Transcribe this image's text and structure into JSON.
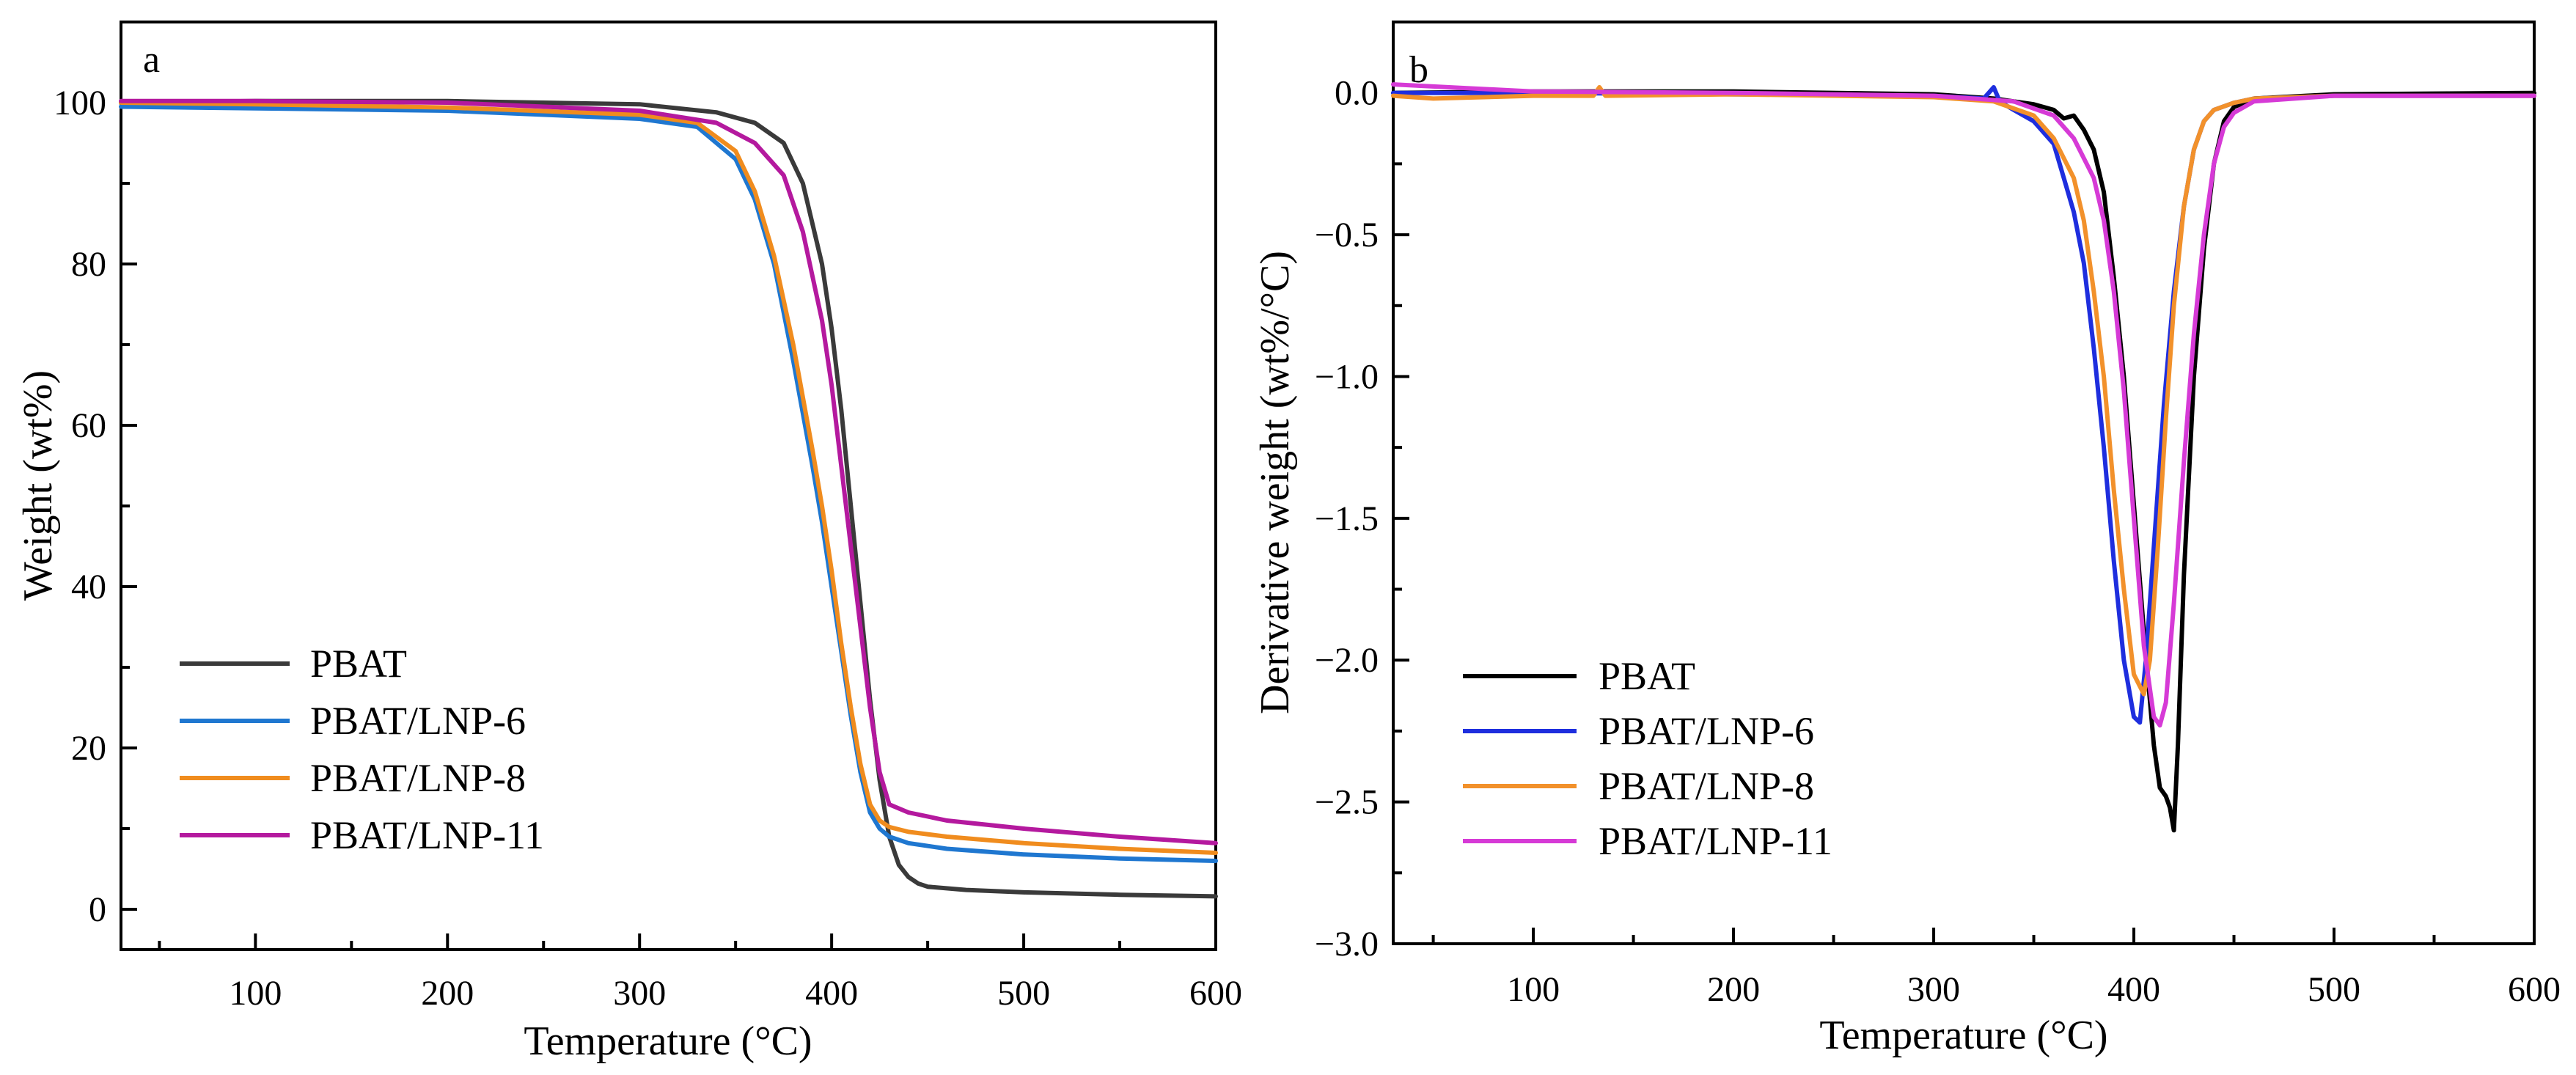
{
  "chart_data": [
    {
      "id": "a",
      "type": "line",
      "panel_label": "a",
      "xlabel": "Temperature (°C)",
      "ylabel": "Weight (wt%)",
      "xlim": [
        30,
        600
      ],
      "ylim": [
        -5,
        110
      ],
      "xticks": [
        100,
        200,
        300,
        400,
        500,
        600
      ],
      "xtick_labels": [
        "100",
        "200",
        "300",
        "400",
        "500",
        "600"
      ],
      "yticks": [
        0,
        20,
        40,
        60,
        80,
        100
      ],
      "ytick_labels": [
        "0",
        "20",
        "40",
        "60",
        "80",
        "100"
      ],
      "grid": false,
      "legend_position": "bottom-left",
      "series": [
        {
          "name": "PBAT",
          "color": "#3a3a3a",
          "x": [
            30,
            100,
            200,
            300,
            340,
            360,
            375,
            385,
            395,
            400,
            405,
            410,
            415,
            420,
            425,
            430,
            435,
            440,
            445,
            450,
            470,
            500,
            550,
            600
          ],
          "y": [
            100,
            100.2,
            100.2,
            99.8,
            98.8,
            97.5,
            95,
            90,
            80,
            72,
            62,
            50,
            38,
            26,
            16,
            9,
            5.5,
            4,
            3.2,
            2.8,
            2.4,
            2.1,
            1.8,
            1.6
          ]
        },
        {
          "name": "PBAT/LNP-6",
          "color": "#1f77d0",
          "x": [
            30,
            100,
            200,
            300,
            330,
            350,
            360,
            370,
            380,
            390,
            395,
            400,
            405,
            410,
            415,
            420,
            425,
            430,
            440,
            460,
            500,
            550,
            600
          ],
          "y": [
            99.5,
            99.3,
            99,
            98,
            97,
            93,
            88,
            80,
            68,
            55,
            48,
            40,
            32,
            24,
            17,
            12,
            10,
            9,
            8.2,
            7.5,
            6.8,
            6.3,
            6.0
          ]
        },
        {
          "name": "PBAT/LNP-8",
          "color": "#f08c1e",
          "x": [
            30,
            100,
            200,
            300,
            330,
            350,
            360,
            370,
            380,
            390,
            395,
            400,
            405,
            410,
            415,
            420,
            425,
            430,
            440,
            460,
            500,
            550,
            600
          ],
          "y": [
            100,
            99.8,
            99.4,
            98.5,
            97.5,
            94,
            89,
            81,
            70,
            57,
            50,
            42,
            33,
            25,
            18,
            13,
            11,
            10.2,
            9.6,
            9,
            8.2,
            7.5,
            7.0
          ]
        },
        {
          "name": "PBAT/LNP-11",
          "color": "#b4199e",
          "x": [
            30,
            100,
            200,
            300,
            340,
            360,
            375,
            385,
            395,
            400,
            405,
            410,
            415,
            420,
            425,
            430,
            440,
            460,
            500,
            550,
            600
          ],
          "y": [
            100.2,
            100.2,
            100,
            99,
            97.5,
            95,
            91,
            84,
            73,
            65,
            55,
            45,
            35,
            25,
            17,
            13,
            12,
            11,
            10,
            9,
            8.2
          ]
        }
      ]
    },
    {
      "id": "b",
      "type": "line",
      "panel_label": "b",
      "xlabel": "Temperature (°C)",
      "ylabel": "Derivative weight (wt%/°C)",
      "xlim": [
        30,
        600
      ],
      "ylim": [
        -3.0,
        0.25
      ],
      "xticks": [
        100,
        200,
        300,
        400,
        500,
        600
      ],
      "xtick_labels": [
        "100",
        "200",
        "300",
        "400",
        "500",
        "600"
      ],
      "yticks": [
        0.0,
        -0.5,
        -1.0,
        -1.5,
        -2.0,
        -2.5,
        -3.0
      ],
      "ytick_labels": [
        "0.0",
        "−0.5",
        "−1.0",
        "−1.5",
        "−2.0",
        "−2.5",
        "−3.0"
      ],
      "grid": false,
      "legend_position": "bottom-left",
      "series": [
        {
          "name": "PBAT",
          "color": "#000000",
          "x": [
            30,
            100,
            200,
            300,
            330,
            350,
            360,
            365,
            370,
            375,
            380,
            385,
            390,
            395,
            400,
            405,
            410,
            413,
            416,
            418,
            420,
            422,
            425,
            430,
            435,
            440,
            445,
            450,
            460,
            500,
            600
          ],
          "y": [
            0,
            0.005,
            0.005,
            -0.005,
            -0.02,
            -0.04,
            -0.06,
            -0.09,
            -0.08,
            -0.13,
            -0.2,
            -0.35,
            -0.65,
            -1.0,
            -1.45,
            -1.9,
            -2.3,
            -2.45,
            -2.48,
            -2.52,
            -2.6,
            -2.3,
            -1.7,
            -1.0,
            -0.55,
            -0.25,
            -0.1,
            -0.05,
            -0.02,
            -0.005,
            0
          ]
        },
        {
          "name": "PBAT/LNP-6",
          "color": "#1e2ede",
          "x": [
            30,
            100,
            200,
            300,
            325,
            330,
            333,
            340,
            350,
            360,
            365,
            370,
            375,
            380,
            385,
            390,
            395,
            400,
            403,
            406,
            410,
            415,
            420,
            425,
            430,
            435,
            440,
            450,
            460,
            500,
            600
          ],
          "y": [
            0,
            0,
            -0.005,
            -0.01,
            -0.02,
            0.02,
            -0.03,
            -0.06,
            -0.1,
            -0.18,
            -0.3,
            -0.42,
            -0.6,
            -0.9,
            -1.25,
            -1.65,
            -2.0,
            -2.2,
            -2.22,
            -2.0,
            -1.6,
            -1.1,
            -0.7,
            -0.4,
            -0.2,
            -0.1,
            -0.06,
            -0.035,
            -0.02,
            -0.01,
            -0.01
          ]
        },
        {
          "name": "PBAT/LNP-8",
          "color": "#f2912b",
          "x": [
            30,
            50,
            100,
            130,
            133,
            136,
            200,
            300,
            330,
            350,
            360,
            370,
            375,
            380,
            385,
            390,
            395,
            400,
            405,
            408,
            412,
            416,
            420,
            425,
            430,
            435,
            440,
            450,
            460,
            500,
            600
          ],
          "y": [
            -0.01,
            -0.02,
            -0.01,
            -0.01,
            0.02,
            -0.01,
            -0.005,
            -0.015,
            -0.03,
            -0.08,
            -0.16,
            -0.3,
            -0.45,
            -0.7,
            -1.0,
            -1.4,
            -1.75,
            -2.05,
            -2.12,
            -2.0,
            -1.6,
            -1.15,
            -0.75,
            -0.4,
            -0.2,
            -0.1,
            -0.06,
            -0.035,
            -0.02,
            -0.01,
            -0.01
          ]
        },
        {
          "name": "PBAT/LNP-11",
          "color": "#d63ad6",
          "x": [
            30,
            100,
            200,
            300,
            340,
            360,
            370,
            380,
            385,
            390,
            395,
            400,
            405,
            410,
            413,
            416,
            420,
            425,
            430,
            435,
            440,
            445,
            450,
            460,
            500,
            600
          ],
          "y": [
            0.03,
            0.005,
            0,
            -0.01,
            -0.03,
            -0.08,
            -0.16,
            -0.3,
            -0.45,
            -0.7,
            -1.05,
            -1.5,
            -1.95,
            -2.2,
            -2.23,
            -2.15,
            -1.8,
            -1.3,
            -0.85,
            -0.5,
            -0.25,
            -0.12,
            -0.07,
            -0.03,
            -0.01,
            -0.01
          ]
        }
      ]
    }
  ]
}
